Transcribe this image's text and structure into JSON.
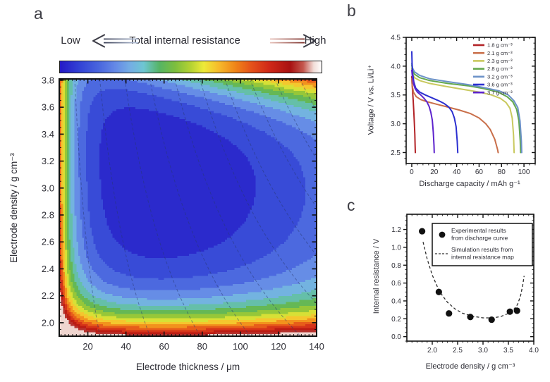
{
  "figure": {
    "panel_a_label": "a",
    "panel_b_label": "b",
    "panel_c_label": "c"
  },
  "colorbar": {
    "low_label": "Low",
    "title": "Total internal resistance",
    "high_label": "High",
    "stops": [
      [
        0.0,
        "#2519c6"
      ],
      [
        0.08,
        "#3445d6"
      ],
      [
        0.15,
        "#4a66de"
      ],
      [
        0.21,
        "#6488e6"
      ],
      [
        0.27,
        "#74aee4"
      ],
      [
        0.32,
        "#6ec6d2"
      ],
      [
        0.38,
        "#55b465"
      ],
      [
        0.44,
        "#7cbe3e"
      ],
      [
        0.5,
        "#b4d233"
      ],
      [
        0.55,
        "#eeea38"
      ],
      [
        0.61,
        "#f6b82a"
      ],
      [
        0.67,
        "#f08518"
      ],
      [
        0.73,
        "#e5531a"
      ],
      [
        0.8,
        "#d02818"
      ],
      [
        0.88,
        "#a81111"
      ],
      [
        0.93,
        "#c4574e"
      ],
      [
        0.97,
        "#f2ddd8"
      ],
      [
        1.0,
        "#ffffff"
      ]
    ]
  },
  "chart_data": [
    {
      "id": "internal_resistance_map",
      "type": "heatmap",
      "xlabel": "Electrode thickness / μm",
      "ylabel": "Electrode density / g cm⁻³",
      "xlim": [
        5,
        140
      ],
      "ylim": [
        1.9,
        3.81
      ],
      "xticks": [
        20,
        40,
        60,
        80,
        100,
        120,
        140
      ],
      "yticks": [
        "3.8",
        "3.6",
        "3.4",
        "3.2",
        "3.0",
        "2.8",
        "2.6",
        "2.4",
        "2.2",
        "2.0"
      ],
      "scale_labels": {
        "low": "Low",
        "high": "High"
      },
      "quantize_bands": 16,
      "minimum": {
        "thickness_um": 65,
        "density_g_cm3": 3.0
      },
      "field_model": {
        "comment": "R(t,rho)=a/(t+b)^p + c1*exp(-k1*(rho-1.9)) + c2*exp(-k2*(rho-1.9)) + q*t^2 + m*t*exp(5*(rho-2)); u=(R-u0)/us",
        "a": 42,
        "b": 2,
        "p": 1.28,
        "c1": 3.2,
        "k1": 5.5,
        "c2": 0.55,
        "k2": 1.6,
        "q": 4e-05,
        "m": 2.2e-06,
        "ion_k": 5,
        "u0": 0.47,
        "us": 3.8
      },
      "contour_lines": {
        "style": "dashed",
        "loading_values": [
          50,
          100,
          150,
          200,
          250,
          300,
          350,
          400,
          450,
          500
        ]
      }
    },
    {
      "id": "discharge_curves",
      "type": "line",
      "xlabel": "Discharge capacity / mAh g⁻¹",
      "ylabel": "Voltage / V vs. Li/Li⁺",
      "xlim": [
        -5,
        110
      ],
      "ylim": [
        2.31,
        4.5
      ],
      "xticks": [
        0,
        20,
        40,
        60,
        80,
        100
      ],
      "yticks": [
        "2.5",
        "3.0",
        "3.5",
        "4.0",
        "4.5"
      ],
      "legend_position": "top-right",
      "series": [
        {
          "name": "1.8 g cm⁻³",
          "color": "#b22327",
          "points": [
            [
              0,
              3.82
            ],
            [
              0.3,
              3.7
            ],
            [
              0.8,
              3.55
            ],
            [
              1.3,
              3.4
            ],
            [
              1.8,
              3.22
            ],
            [
              2.3,
              3.02
            ],
            [
              2.7,
              2.82
            ],
            [
              3.0,
              2.62
            ],
            [
              3.2,
              2.5
            ]
          ]
        },
        {
          "name": "2.1 g cm⁻³",
          "color": "#c96f4a",
          "points": [
            [
              0,
              3.78
            ],
            [
              0.4,
              3.66
            ],
            [
              1.5,
              3.55
            ],
            [
              4,
              3.47
            ],
            [
              8,
              3.42
            ],
            [
              14,
              3.38
            ],
            [
              22,
              3.34
            ],
            [
              32,
              3.29
            ],
            [
              42,
              3.24
            ],
            [
              52,
              3.18
            ],
            [
              60,
              3.1
            ],
            [
              66,
              3.0
            ],
            [
              70,
              2.9
            ],
            [
              74,
              2.73
            ],
            [
              76.5,
              2.55
            ],
            [
              77,
              2.5
            ]
          ]
        },
        {
          "name": "2.3 g cm⁻³",
          "color": "#c9c95e",
          "points": [
            [
              0,
              3.96
            ],
            [
              0.6,
              3.87
            ],
            [
              2.5,
              3.8
            ],
            [
              7,
              3.75
            ],
            [
              16,
              3.7
            ],
            [
              30,
              3.65
            ],
            [
              45,
              3.6
            ],
            [
              60,
              3.55
            ],
            [
              71,
              3.5
            ],
            [
              79,
              3.44
            ],
            [
              84,
              3.37
            ],
            [
              87.5,
              3.27
            ],
            [
              89.5,
              3.1
            ],
            [
              90.7,
              2.8
            ],
            [
              91.2,
              2.5
            ]
          ]
        },
        {
          "name": "2.8 g cm⁻³",
          "color": "#64a84e",
          "points": [
            [
              0,
              4.02
            ],
            [
              0.6,
              3.93
            ],
            [
              2.5,
              3.86
            ],
            [
              7,
              3.8
            ],
            [
              16,
              3.75
            ],
            [
              32,
              3.7
            ],
            [
              50,
              3.66
            ],
            [
              64,
              3.61
            ],
            [
              77,
              3.55
            ],
            [
              85,
              3.47
            ],
            [
              90,
              3.38
            ],
            [
              93.5,
              3.25
            ],
            [
              95.5,
              3.05
            ],
            [
              96.7,
              2.7
            ],
            [
              97,
              2.5
            ]
          ]
        },
        {
          "name": "3.2 g cm⁻³",
          "color": "#6c92c8",
          "points": [
            [
              0,
              4.05
            ],
            [
              0.6,
              3.97
            ],
            [
              2.5,
              3.9
            ],
            [
              7,
              3.84
            ],
            [
              16,
              3.78
            ],
            [
              32,
              3.73
            ],
            [
              50,
              3.68
            ],
            [
              64,
              3.63
            ],
            [
              78,
              3.57
            ],
            [
              86,
              3.5
            ],
            [
              91,
              3.4
            ],
            [
              94.5,
              3.28
            ],
            [
              96.5,
              3.05
            ],
            [
              97.7,
              2.7
            ],
            [
              98,
              2.5
            ]
          ]
        },
        {
          "name": "3.6 g cm⁻³",
          "color": "#2b2fd0",
          "points": [
            [
              0,
              4.25
            ],
            [
              0.3,
              4.05
            ],
            [
              0.8,
              3.88
            ],
            [
              1.8,
              3.73
            ],
            [
              3.5,
              3.62
            ],
            [
              7,
              3.55
            ],
            [
              12,
              3.5
            ],
            [
              18,
              3.45
            ],
            [
              24,
              3.4
            ],
            [
              29,
              3.35
            ],
            [
              33,
              3.29
            ],
            [
              36,
              3.21
            ],
            [
              38,
              3.1
            ],
            [
              39.5,
              2.95
            ],
            [
              40.5,
              2.7
            ],
            [
              41,
              2.5
            ]
          ]
        },
        {
          "name": "3.7 g cm⁻³",
          "color": "#5d23cd",
          "points": [
            [
              0,
              3.93
            ],
            [
              0.5,
              3.82
            ],
            [
              1.5,
              3.7
            ],
            [
              3,
              3.61
            ],
            [
              5,
              3.55
            ],
            [
              8,
              3.5
            ],
            [
              11,
              3.44
            ],
            [
              13.5,
              3.38
            ],
            [
              15.5,
              3.3
            ],
            [
              17,
              3.2
            ],
            [
              18.3,
              3.06
            ],
            [
              19.2,
              2.85
            ],
            [
              19.8,
              2.62
            ],
            [
              20,
              2.5
            ]
          ]
        }
      ]
    },
    {
      "id": "internal_resistance_vs_density",
      "type": "scatter",
      "xlabel": "Electrode density / g cm⁻³",
      "ylabel": "Internal resistance / V",
      "xlim": [
        1.5,
        4.0
      ],
      "ylim": [
        -0.05,
        1.37
      ],
      "xticks": [
        "2.0",
        "2.5",
        "3.0",
        "3.5",
        "4.0"
      ],
      "yticks": [
        "0.0",
        "0.2",
        "0.4",
        "0.6",
        "0.8",
        "1.0",
        "1.2"
      ],
      "experimental": {
        "label_lines": [
          "Experimental results",
          "from discharge curve"
        ],
        "marker": "filled-circle",
        "color": "#111111",
        "points": [
          [
            1.8,
            1.18
          ],
          [
            2.13,
            0.5
          ],
          [
            2.33,
            0.26
          ],
          [
            2.75,
            0.22
          ],
          [
            3.17,
            0.19
          ],
          [
            3.53,
            0.28
          ],
          [
            3.67,
            0.29
          ]
        ]
      },
      "simulation": {
        "label_lines": [
          "Simulation results from",
          "internal resistance map"
        ],
        "line_style": "dashed",
        "color": "#2b2b2b",
        "points": [
          [
            1.82,
            1.06
          ],
          [
            1.9,
            0.87
          ],
          [
            2.0,
            0.69
          ],
          [
            2.1,
            0.56
          ],
          [
            2.2,
            0.46
          ],
          [
            2.3,
            0.385
          ],
          [
            2.45,
            0.31
          ],
          [
            2.6,
            0.262
          ],
          [
            2.8,
            0.228
          ],
          [
            3.0,
            0.21
          ],
          [
            3.2,
            0.21
          ],
          [
            3.35,
            0.225
          ],
          [
            3.5,
            0.26
          ],
          [
            3.6,
            0.3
          ],
          [
            3.68,
            0.36
          ],
          [
            3.74,
            0.46
          ],
          [
            3.78,
            0.57
          ],
          [
            3.81,
            0.68
          ]
        ]
      }
    }
  ]
}
